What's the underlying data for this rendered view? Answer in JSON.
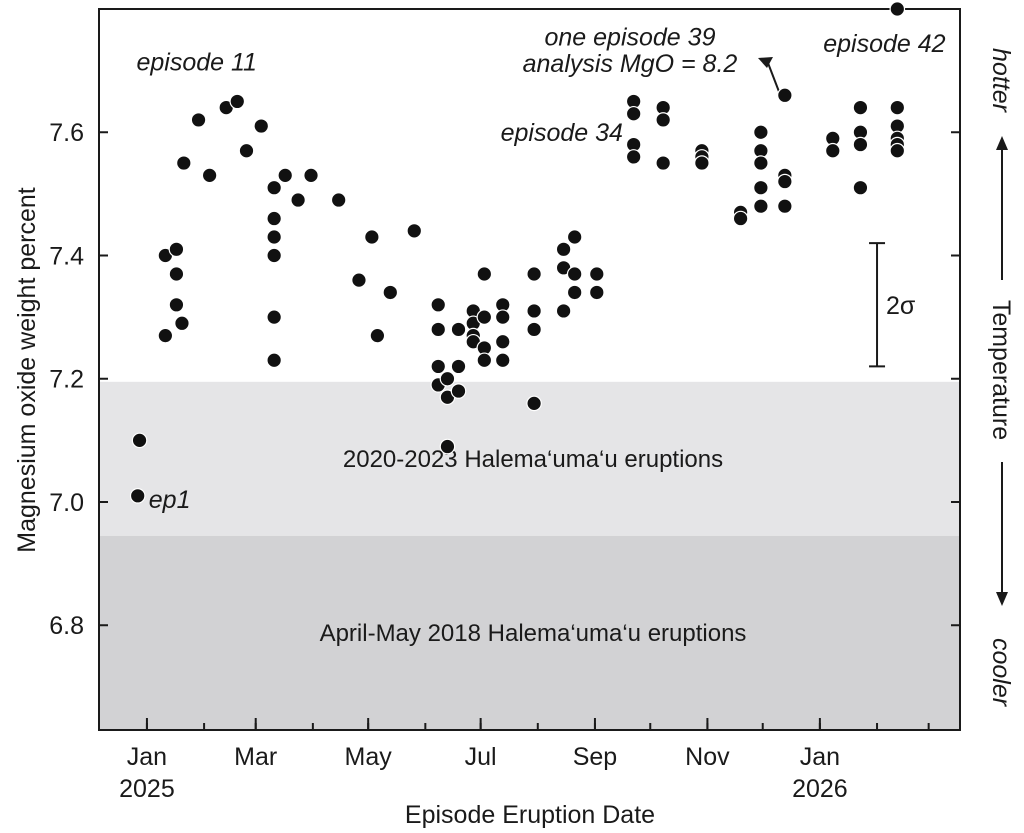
{
  "chart_data": {
    "type": "scatter",
    "ylabel": "Magnesium oxide weight percent",
    "xlabel": "Episode Eruption Date",
    "ylim": [
      6.63,
      7.8
    ],
    "yticks": [
      6.8,
      7.0,
      7.2,
      7.4,
      7.6
    ],
    "ytick_labels": [
      "6.8",
      "7.0",
      "7.2",
      "7.4",
      "7.6"
    ],
    "xlim": [
      "2024-12-06",
      "2026-03-18"
    ],
    "xticks": [
      {
        "date": "2025-01-01",
        "label": "Jan",
        "label2": "2025"
      },
      {
        "date": "2025-03-01",
        "label": "Mar",
        "label2": ""
      },
      {
        "date": "2025-05-01",
        "label": "May",
        "label2": ""
      },
      {
        "date": "2025-07-01",
        "label": "Jul",
        "label2": ""
      },
      {
        "date": "2025-09-01",
        "label": "Sep",
        "label2": ""
      },
      {
        "date": "2025-11-01",
        "label": "Nov",
        "label2": ""
      },
      {
        "date": "2026-01-01",
        "label": "Jan",
        "label2": "2026"
      }
    ],
    "bands": [
      {
        "label": "2020-2023 Halema‘uma‘u eruptions",
        "y0": 6.945,
        "y1": 7.195,
        "color": "#e5e5e7"
      },
      {
        "label": "April-May 2018 Halema‘uma‘u eruptions",
        "y0": 6.63,
        "y1": 6.945,
        "color": "#d2d2d4"
      }
    ],
    "right_axis": {
      "top": "hotter",
      "middle": "Temperature",
      "bottom": "cooler"
    },
    "error_bar": {
      "label": "2σ",
      "y_low": 7.22,
      "y_high": 7.42,
      "x": "2026-02-01"
    },
    "annotations": [
      {
        "text": "episode 11",
        "x": "2025-01-28",
        "y": 7.715
      },
      {
        "text": "episode 34",
        "x": "2025-08-14",
        "y": 7.6
      },
      {
        "text": "one episode 39",
        "x": "2025-09-20",
        "y": 7.755
      },
      {
        "text": "analysis MgO = 8.2",
        "x": "2025-09-20",
        "y": 7.712
      },
      {
        "text": "episode 42",
        "x": "2026-02-05",
        "y": 7.745
      },
      {
        "text": "ep1",
        "x": "2025-01-02",
        "y": 7.005
      }
    ],
    "points": [
      {
        "x": "2024-12-28",
        "y": 7.1
      },
      {
        "x": "2024-12-27",
        "y": 7.01
      },
      {
        "x": "2025-01-11",
        "y": 7.4
      },
      {
        "x": "2025-01-11",
        "y": 7.27
      },
      {
        "x": "2025-01-17",
        "y": 7.41
      },
      {
        "x": "2025-01-17",
        "y": 7.37
      },
      {
        "x": "2025-01-17",
        "y": 7.32
      },
      {
        "x": "2025-01-20",
        "y": 7.29
      },
      {
        "x": "2025-01-21",
        "y": 7.55
      },
      {
        "x": "2025-01-29",
        "y": 7.62
      },
      {
        "x": "2025-02-04",
        "y": 7.53
      },
      {
        "x": "2025-02-13",
        "y": 7.64
      },
      {
        "x": "2025-02-19",
        "y": 7.65
      },
      {
        "x": "2025-02-24",
        "y": 7.57
      },
      {
        "x": "2025-03-04",
        "y": 7.61
      },
      {
        "x": "2025-03-11",
        "y": 7.51
      },
      {
        "x": "2025-03-11",
        "y": 7.46
      },
      {
        "x": "2025-03-11",
        "y": 7.43
      },
      {
        "x": "2025-03-11",
        "y": 7.4
      },
      {
        "x": "2025-03-11",
        "y": 7.3
      },
      {
        "x": "2025-03-11",
        "y": 7.23
      },
      {
        "x": "2025-03-17",
        "y": 7.53
      },
      {
        "x": "2025-03-24",
        "y": 7.49
      },
      {
        "x": "2025-03-31",
        "y": 7.53
      },
      {
        "x": "2025-04-15",
        "y": 7.49
      },
      {
        "x": "2025-04-26",
        "y": 7.36
      },
      {
        "x": "2025-05-03",
        "y": 7.43
      },
      {
        "x": "2025-05-06",
        "y": 7.27
      },
      {
        "x": "2025-05-13",
        "y": 7.34
      },
      {
        "x": "2025-05-26",
        "y": 7.44
      },
      {
        "x": "2025-06-08",
        "y": 7.32
      },
      {
        "x": "2025-06-08",
        "y": 7.28
      },
      {
        "x": "2025-06-08",
        "y": 7.22
      },
      {
        "x": "2025-06-08",
        "y": 7.19
      },
      {
        "x": "2025-06-13",
        "y": 7.2
      },
      {
        "x": "2025-06-13",
        "y": 7.17
      },
      {
        "x": "2025-06-13",
        "y": 7.09
      },
      {
        "x": "2025-06-19",
        "y": 7.28
      },
      {
        "x": "2025-06-19",
        "y": 7.22
      },
      {
        "x": "2025-06-19",
        "y": 7.18
      },
      {
        "x": "2025-06-27",
        "y": 7.31
      },
      {
        "x": "2025-06-27",
        "y": 7.29
      },
      {
        "x": "2025-06-27",
        "y": 7.27
      },
      {
        "x": "2025-06-27",
        "y": 7.26
      },
      {
        "x": "2025-07-03",
        "y": 7.37
      },
      {
        "x": "2025-07-03",
        "y": 7.3
      },
      {
        "x": "2025-07-03",
        "y": 7.25
      },
      {
        "x": "2025-07-03",
        "y": 7.23
      },
      {
        "x": "2025-07-13",
        "y": 7.32
      },
      {
        "x": "2025-07-13",
        "y": 7.3
      },
      {
        "x": "2025-07-13",
        "y": 7.26
      },
      {
        "x": "2025-07-13",
        "y": 7.23
      },
      {
        "x": "2025-07-30",
        "y": 7.37
      },
      {
        "x": "2025-07-30",
        "y": 7.31
      },
      {
        "x": "2025-07-30",
        "y": 7.28
      },
      {
        "x": "2025-07-30",
        "y": 7.16
      },
      {
        "x": "2025-08-15",
        "y": 7.41
      },
      {
        "x": "2025-08-15",
        "y": 7.38
      },
      {
        "x": "2025-08-15",
        "y": 7.31
      },
      {
        "x": "2025-08-21",
        "y": 7.43
      },
      {
        "x": "2025-08-21",
        "y": 7.37
      },
      {
        "x": "2025-08-21",
        "y": 7.34
      },
      {
        "x": "2025-09-02",
        "y": 7.37
      },
      {
        "x": "2025-09-02",
        "y": 7.34
      },
      {
        "x": "2025-09-22",
        "y": 7.65
      },
      {
        "x": "2025-09-22",
        "y": 7.63
      },
      {
        "x": "2025-09-22",
        "y": 7.58
      },
      {
        "x": "2025-09-22",
        "y": 7.56
      },
      {
        "x": "2025-10-08",
        "y": 7.64
      },
      {
        "x": "2025-10-08",
        "y": 7.62
      },
      {
        "x": "2025-10-08",
        "y": 7.55
      },
      {
        "x": "2025-10-29",
        "y": 7.57
      },
      {
        "x": "2025-10-29",
        "y": 7.56
      },
      {
        "x": "2025-10-29",
        "y": 7.55
      },
      {
        "x": "2025-11-19",
        "y": 7.47
      },
      {
        "x": "2025-11-19",
        "y": 7.46
      },
      {
        "x": "2025-11-30",
        "y": 7.6
      },
      {
        "x": "2025-11-30",
        "y": 7.57
      },
      {
        "x": "2025-11-30",
        "y": 7.55
      },
      {
        "x": "2025-11-30",
        "y": 7.51
      },
      {
        "x": "2025-11-30",
        "y": 7.48
      },
      {
        "x": "2025-12-13",
        "y": 7.66
      },
      {
        "x": "2025-12-13",
        "y": 7.53
      },
      {
        "x": "2025-12-13",
        "y": 7.52
      },
      {
        "x": "2025-12-13",
        "y": 7.48
      },
      {
        "x": "2026-01-08",
        "y": 7.59
      },
      {
        "x": "2026-01-08",
        "y": 7.57
      },
      {
        "x": "2026-01-23",
        "y": 7.64
      },
      {
        "x": "2026-01-23",
        "y": 7.6
      },
      {
        "x": "2026-01-23",
        "y": 7.58
      },
      {
        "x": "2026-01-23",
        "y": 7.51
      },
      {
        "x": "2026-02-12",
        "y": 7.64
      },
      {
        "x": "2026-02-12",
        "y": 7.61
      },
      {
        "x": "2026-02-12",
        "y": 7.59
      },
      {
        "x": "2026-02-12",
        "y": 7.58
      },
      {
        "x": "2026-02-12",
        "y": 7.57
      },
      {
        "x": "2026-02-12",
        "y": 7.8
      }
    ]
  }
}
